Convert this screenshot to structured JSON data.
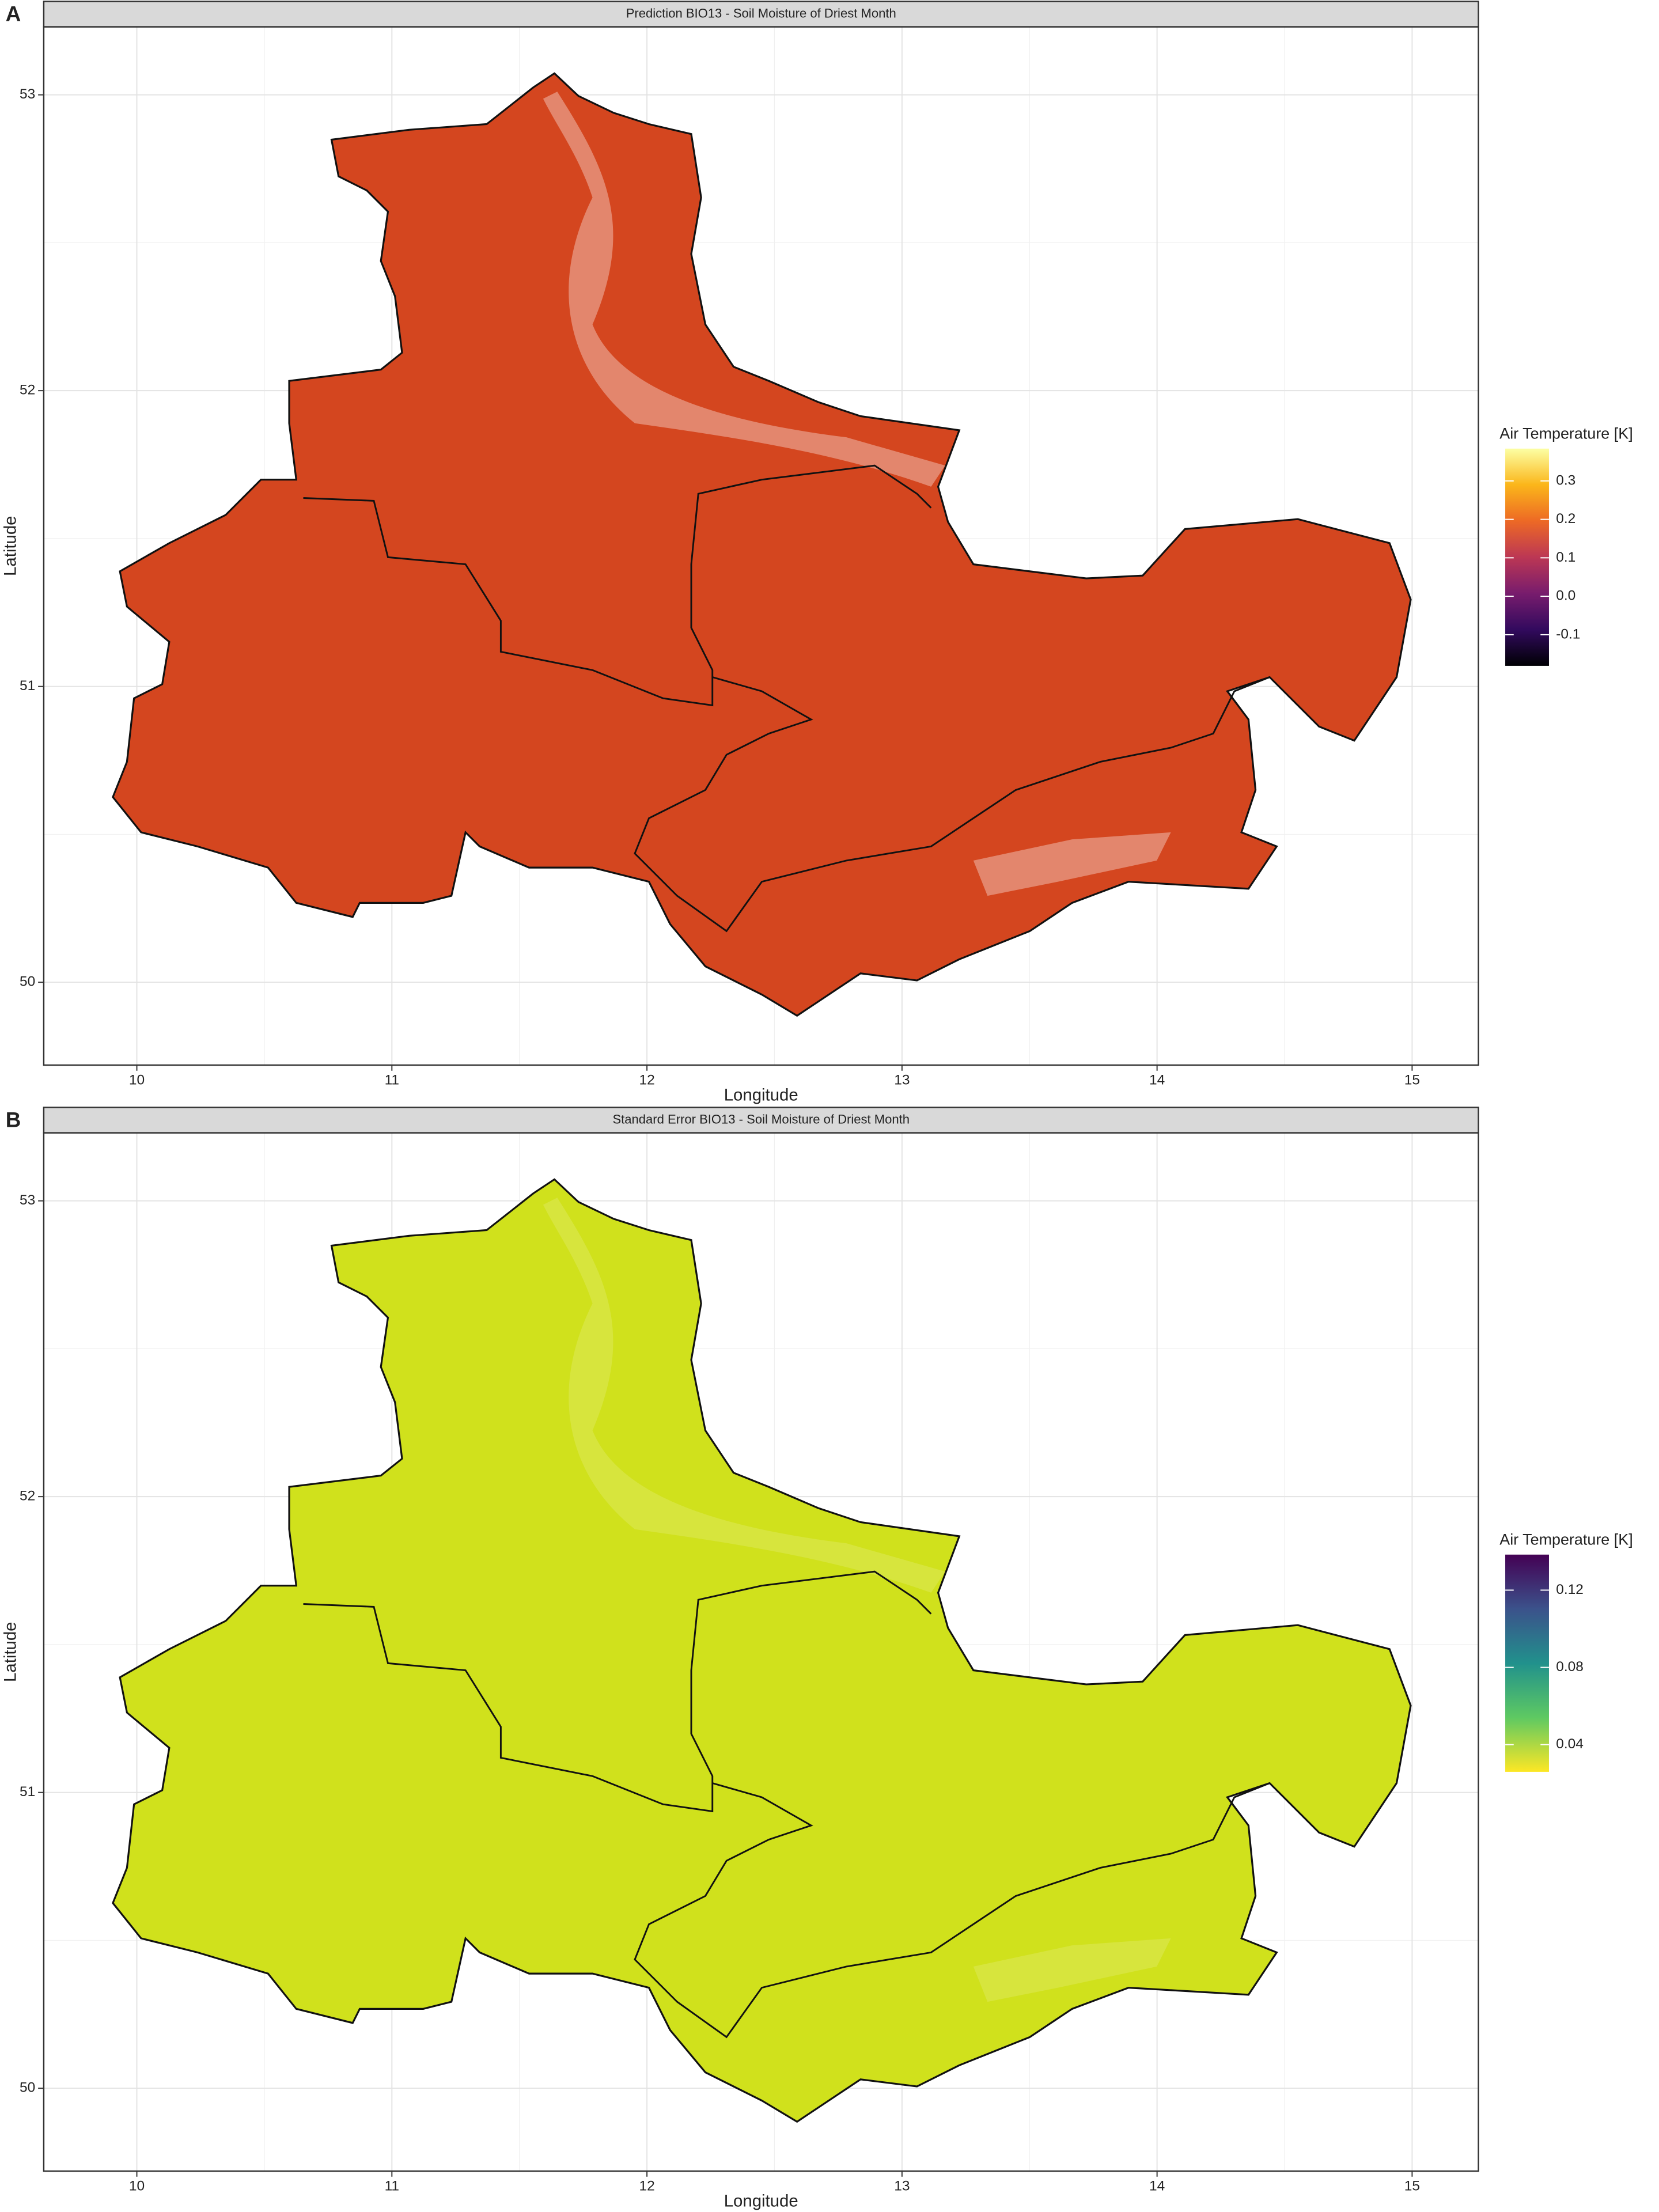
{
  "chart_data": [
    {
      "type": "raster",
      "panel_label": "A",
      "title": "Prediction BIO13 - Soil Moisture of Driest Month",
      "x_label": "Longitude",
      "y_label": "Latitude",
      "color": "#d4461f",
      "xlim": [
        9.635,
        15.26
      ],
      "ylim": [
        49.72,
        53.23
      ],
      "xticks": [
        10,
        11,
        12,
        13,
        14,
        15
      ],
      "yticks": [
        50,
        51,
        52,
        53
      ],
      "grid": true,
      "legend": {
        "title": "Air Temperature [K]",
        "lim": [
          -0.181,
          0.384
        ],
        "ticks": [
          -0.1,
          {
            "value": 0,
            "label": "0.0"
          },
          0.1,
          0.2,
          0.3
        ],
        "palette": [
          "#000004",
          "#320a5e",
          "#781c6d",
          "#bc3754",
          "#ed6925",
          "#fbb61a",
          "#fcffa4"
        ]
      }
    },
    {
      "type": "raster",
      "panel_label": "B",
      "title": "Standard Error BIO13 - Soil Moisture of Driest Month",
      "x_label": "Longitude",
      "y_label": "Latitude",
      "color": "#d0e11c",
      "xlim": [
        9.635,
        15.26
      ],
      "ylim": [
        49.72,
        53.23
      ],
      "xticks": [
        10,
        11,
        12,
        13,
        14,
        15
      ],
      "yticks": [
        50,
        51,
        52,
        53
      ],
      "grid": true,
      "legend": {
        "title": "Air Temperature [K]",
        "lim": [
          0.0259,
          0.1384
        ],
        "ticks": [
          0.04,
          0.08,
          0.12
        ],
        "palette": [
          "#fde725",
          "#5ec962",
          "#21918c",
          "#3b528b",
          "#440154"
        ]
      }
    }
  ]
}
